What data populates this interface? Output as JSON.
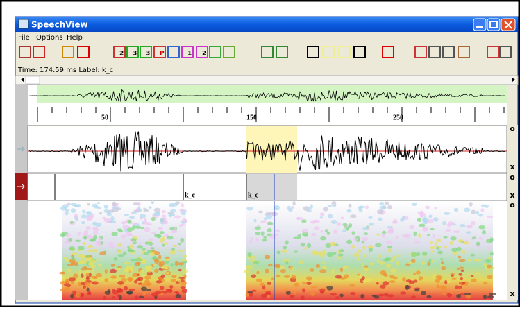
{
  "window": {
    "title": "SpeechView",
    "menu": [
      "File",
      "Options",
      "Help"
    ],
    "toolbar_labels": [
      "2",
      "3",
      "3",
      "P",
      "1",
      "2"
    ],
    "status": "Time: 174.59 ms  Label: k_c"
  },
  "ruler": {
    "labels": [
      "50",
      "150",
      "250"
    ]
  },
  "label_tier": {
    "labels": [
      "k_c",
      "k_c"
    ]
  },
  "panel_buttons": [
    "o",
    "x",
    "o",
    "x",
    "o",
    "x"
  ]
}
